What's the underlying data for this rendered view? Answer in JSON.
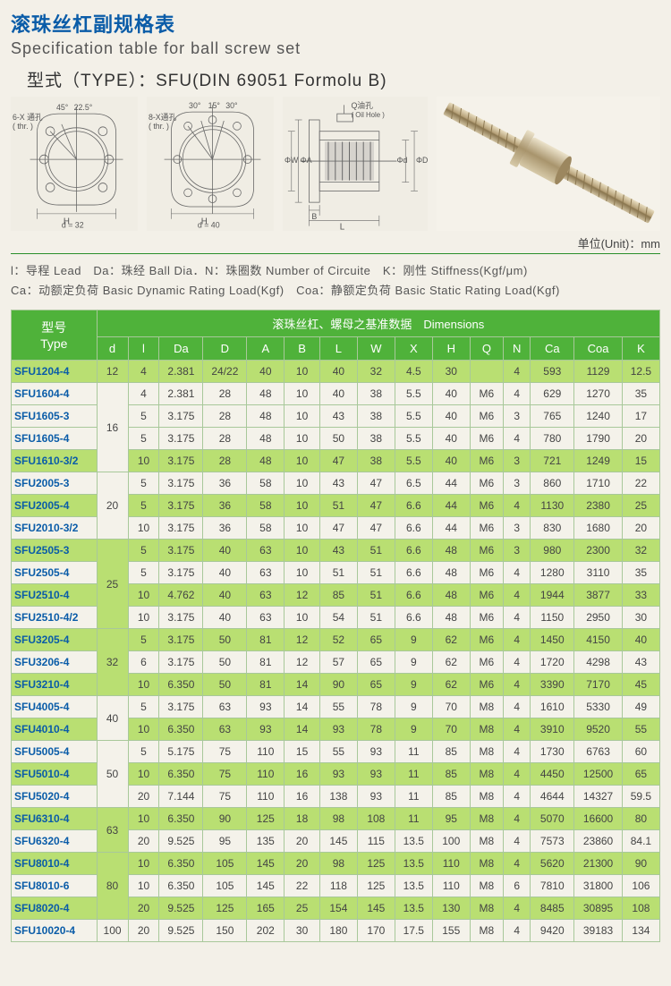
{
  "title_cn": "滚珠丝杠副规格表",
  "title_en": "Specification table for ball screw set",
  "type_line": "型式（TYPE）：SFU(DIN 69051 Formolu B)",
  "unit_line": "单位(Unit)：mm",
  "legend_line1": "l：导程 Lead　Da：珠经 Ball Dia．N：珠圈数 Number of Circuite　K：刚性 Stiffness(Kgf/μm)",
  "legend_line2": "Ca：动额定负荷 Basic Dynamic Rating Load(Kgf)　Coa：静额定负荷 Basic Static Rating Load(Kgf)",
  "diagram_labels": {
    "thr6x": "6-X 通孔\n( thr. )",
    "ang45": "45°",
    "ang225": "22.5°",
    "d32": "d = 32",
    "thr8x": "8-X通孔\n( thr. )",
    "ang30a": "30°",
    "ang15": "15°",
    "ang30b": "30°",
    "d40": "d = 40",
    "oilhole": "Q油孔\n( Oil Hole )",
    "phiA": "ΦA",
    "phiW": "ΦW",
    "phid": "Φd",
    "phiD": "ΦD",
    "B": "B",
    "L": "L",
    "H1": "H",
    "H2": "H"
  },
  "colors": {
    "title": "#0a5ca8",
    "header_bg": "#4fb23a",
    "header_fg": "#ffffff",
    "row_bg": "#f4f2ea",
    "row_hl": "#b9df72",
    "border": "#a8c89a",
    "rule": "#2a8f2a",
    "screw_metal": "#b7a27a"
  },
  "table": {
    "header_type_cn": "型号",
    "header_type_en": "Type",
    "header_dim": "滚珠丝杠、螺母之基准数据　Dimensions",
    "cols": [
      "d",
      "l",
      "Da",
      "D",
      "A",
      "B",
      "L",
      "W",
      "X",
      "H",
      "Q",
      "N",
      "Ca",
      "Coa",
      "K"
    ],
    "d_groups": [
      {
        "d": "12",
        "count": 1
      },
      {
        "d": "16",
        "count": 4
      },
      {
        "d": "20",
        "count": 3
      },
      {
        "d": "25",
        "count": 4
      },
      {
        "d": "32",
        "count": 3
      },
      {
        "d": "40",
        "count": 2
      },
      {
        "d": "50",
        "count": 3
      },
      {
        "d": "63",
        "count": 2
      },
      {
        "d": "80",
        "count": 3
      },
      {
        "d": "100",
        "count": 1
      }
    ],
    "rows": [
      {
        "type": "SFU1204-4",
        "hl": true,
        "v": [
          "4",
          "2.381",
          "24/22",
          "40",
          "10",
          "40",
          "32",
          "4.5",
          "30",
          "",
          "4",
          "593",
          "1129",
          "12.5"
        ]
      },
      {
        "type": "SFU1604-4",
        "hl": false,
        "v": [
          "4",
          "2.381",
          "28",
          "48",
          "10",
          "40",
          "38",
          "5.5",
          "40",
          "M6",
          "4",
          "629",
          "1270",
          "35"
        ]
      },
      {
        "type": "SFU1605-3",
        "hl": false,
        "v": [
          "5",
          "3.175",
          "28",
          "48",
          "10",
          "43",
          "38",
          "5.5",
          "40",
          "M6",
          "3",
          "765",
          "1240",
          "17"
        ]
      },
      {
        "type": "SFU1605-4",
        "hl": false,
        "v": [
          "5",
          "3.175",
          "28",
          "48",
          "10",
          "50",
          "38",
          "5.5",
          "40",
          "M6",
          "4",
          "780",
          "1790",
          "20"
        ]
      },
      {
        "type": "SFU1610-3/2",
        "hl": true,
        "v": [
          "10",
          "3.175",
          "28",
          "48",
          "10",
          "47",
          "38",
          "5.5",
          "40",
          "M6",
          "3",
          "721",
          "1249",
          "15"
        ]
      },
      {
        "type": "SFU2005-3",
        "hl": false,
        "v": [
          "5",
          "3.175",
          "36",
          "58",
          "10",
          "43",
          "47",
          "6.5",
          "44",
          "M6",
          "3",
          "860",
          "1710",
          "22"
        ]
      },
      {
        "type": "SFU2005-4",
        "hl": true,
        "v": [
          "5",
          "3.175",
          "36",
          "58",
          "10",
          "51",
          "47",
          "6.6",
          "44",
          "M6",
          "4",
          "1130",
          "2380",
          "25"
        ]
      },
      {
        "type": "SFU2010-3/2",
        "hl": false,
        "v": [
          "10",
          "3.175",
          "36",
          "58",
          "10",
          "47",
          "47",
          "6.6",
          "44",
          "M6",
          "3",
          "830",
          "1680",
          "20"
        ]
      },
      {
        "type": "SFU2505-3",
        "hl": true,
        "v": [
          "5",
          "3.175",
          "40",
          "63",
          "10",
          "43",
          "51",
          "6.6",
          "48",
          "M6",
          "3",
          "980",
          "2300",
          "32"
        ]
      },
      {
        "type": "SFU2505-4",
        "hl": false,
        "v": [
          "5",
          "3.175",
          "40",
          "63",
          "10",
          "51",
          "51",
          "6.6",
          "48",
          "M6",
          "4",
          "1280",
          "3110",
          "35"
        ]
      },
      {
        "type": "SFU2510-4",
        "hl": true,
        "v": [
          "10",
          "4.762",
          "40",
          "63",
          "12",
          "85",
          "51",
          "6.6",
          "48",
          "M6",
          "4",
          "1944",
          "3877",
          "33"
        ]
      },
      {
        "type": "SFU2510-4/2",
        "hl": false,
        "v": [
          "10",
          "3.175",
          "40",
          "63",
          "10",
          "54",
          "51",
          "6.6",
          "48",
          "M6",
          "4",
          "1150",
          "2950",
          "30"
        ]
      },
      {
        "type": "SFU3205-4",
        "hl": true,
        "v": [
          "5",
          "3.175",
          "50",
          "81",
          "12",
          "52",
          "65",
          "9",
          "62",
          "M6",
          "4",
          "1450",
          "4150",
          "40"
        ]
      },
      {
        "type": "SFU3206-4",
        "hl": false,
        "v": [
          "6",
          "3.175",
          "50",
          "81",
          "12",
          "57",
          "65",
          "9",
          "62",
          "M6",
          "4",
          "1720",
          "4298",
          "43"
        ]
      },
      {
        "type": "SFU3210-4",
        "hl": true,
        "v": [
          "10",
          "6.350",
          "50",
          "81",
          "14",
          "90",
          "65",
          "9",
          "62",
          "M6",
          "4",
          "3390",
          "7170",
          "45"
        ]
      },
      {
        "type": "SFU4005-4",
        "hl": false,
        "v": [
          "5",
          "3.175",
          "63",
          "93",
          "14",
          "55",
          "78",
          "9",
          "70",
          "M8",
          "4",
          "1610",
          "5330",
          "49"
        ]
      },
      {
        "type": "SFU4010-4",
        "hl": true,
        "v": [
          "10",
          "6.350",
          "63",
          "93",
          "14",
          "93",
          "78",
          "9",
          "70",
          "M8",
          "4",
          "3910",
          "9520",
          "55"
        ]
      },
      {
        "type": "SFU5005-4",
        "hl": false,
        "v": [
          "5",
          "5.175",
          "75",
          "110",
          "15",
          "55",
          "93",
          "11",
          "85",
          "M8",
          "4",
          "1730",
          "6763",
          "60"
        ]
      },
      {
        "type": "SFU5010-4",
        "hl": true,
        "v": [
          "10",
          "6.350",
          "75",
          "110",
          "16",
          "93",
          "93",
          "11",
          "85",
          "M8",
          "4",
          "4450",
          "12500",
          "65"
        ]
      },
      {
        "type": "SFU5020-4",
        "hl": false,
        "v": [
          "20",
          "7.144",
          "75",
          "110",
          "16",
          "138",
          "93",
          "11",
          "85",
          "M8",
          "4",
          "4644",
          "14327",
          "59.5"
        ]
      },
      {
        "type": "SFU6310-4",
        "hl": true,
        "v": [
          "10",
          "6.350",
          "90",
          "125",
          "18",
          "98",
          "108",
          "11",
          "95",
          "M8",
          "4",
          "5070",
          "16600",
          "80"
        ]
      },
      {
        "type": "SFU6320-4",
        "hl": false,
        "v": [
          "20",
          "9.525",
          "95",
          "135",
          "20",
          "145",
          "115",
          "13.5",
          "100",
          "M8",
          "4",
          "7573",
          "23860",
          "84.1"
        ]
      },
      {
        "type": "SFU8010-4",
        "hl": true,
        "v": [
          "10",
          "6.350",
          "105",
          "145",
          "20",
          "98",
          "125",
          "13.5",
          "110",
          "M8",
          "4",
          "5620",
          "21300",
          "90"
        ]
      },
      {
        "type": "SFU8010-6",
        "hl": false,
        "v": [
          "10",
          "6.350",
          "105",
          "145",
          "22",
          "118",
          "125",
          "13.5",
          "110",
          "M8",
          "6",
          "7810",
          "31800",
          "106"
        ]
      },
      {
        "type": "SFU8020-4",
        "hl": true,
        "v": [
          "20",
          "9.525",
          "125",
          "165",
          "25",
          "154",
          "145",
          "13.5",
          "130",
          "M8",
          "4",
          "8485",
          "30895",
          "108"
        ]
      },
      {
        "type": "SFU10020-4",
        "hl": false,
        "v": [
          "20",
          "9.525",
          "150",
          "202",
          "30",
          "180",
          "170",
          "17.5",
          "155",
          "M8",
          "4",
          "9420",
          "39183",
          "134"
        ]
      }
    ]
  }
}
